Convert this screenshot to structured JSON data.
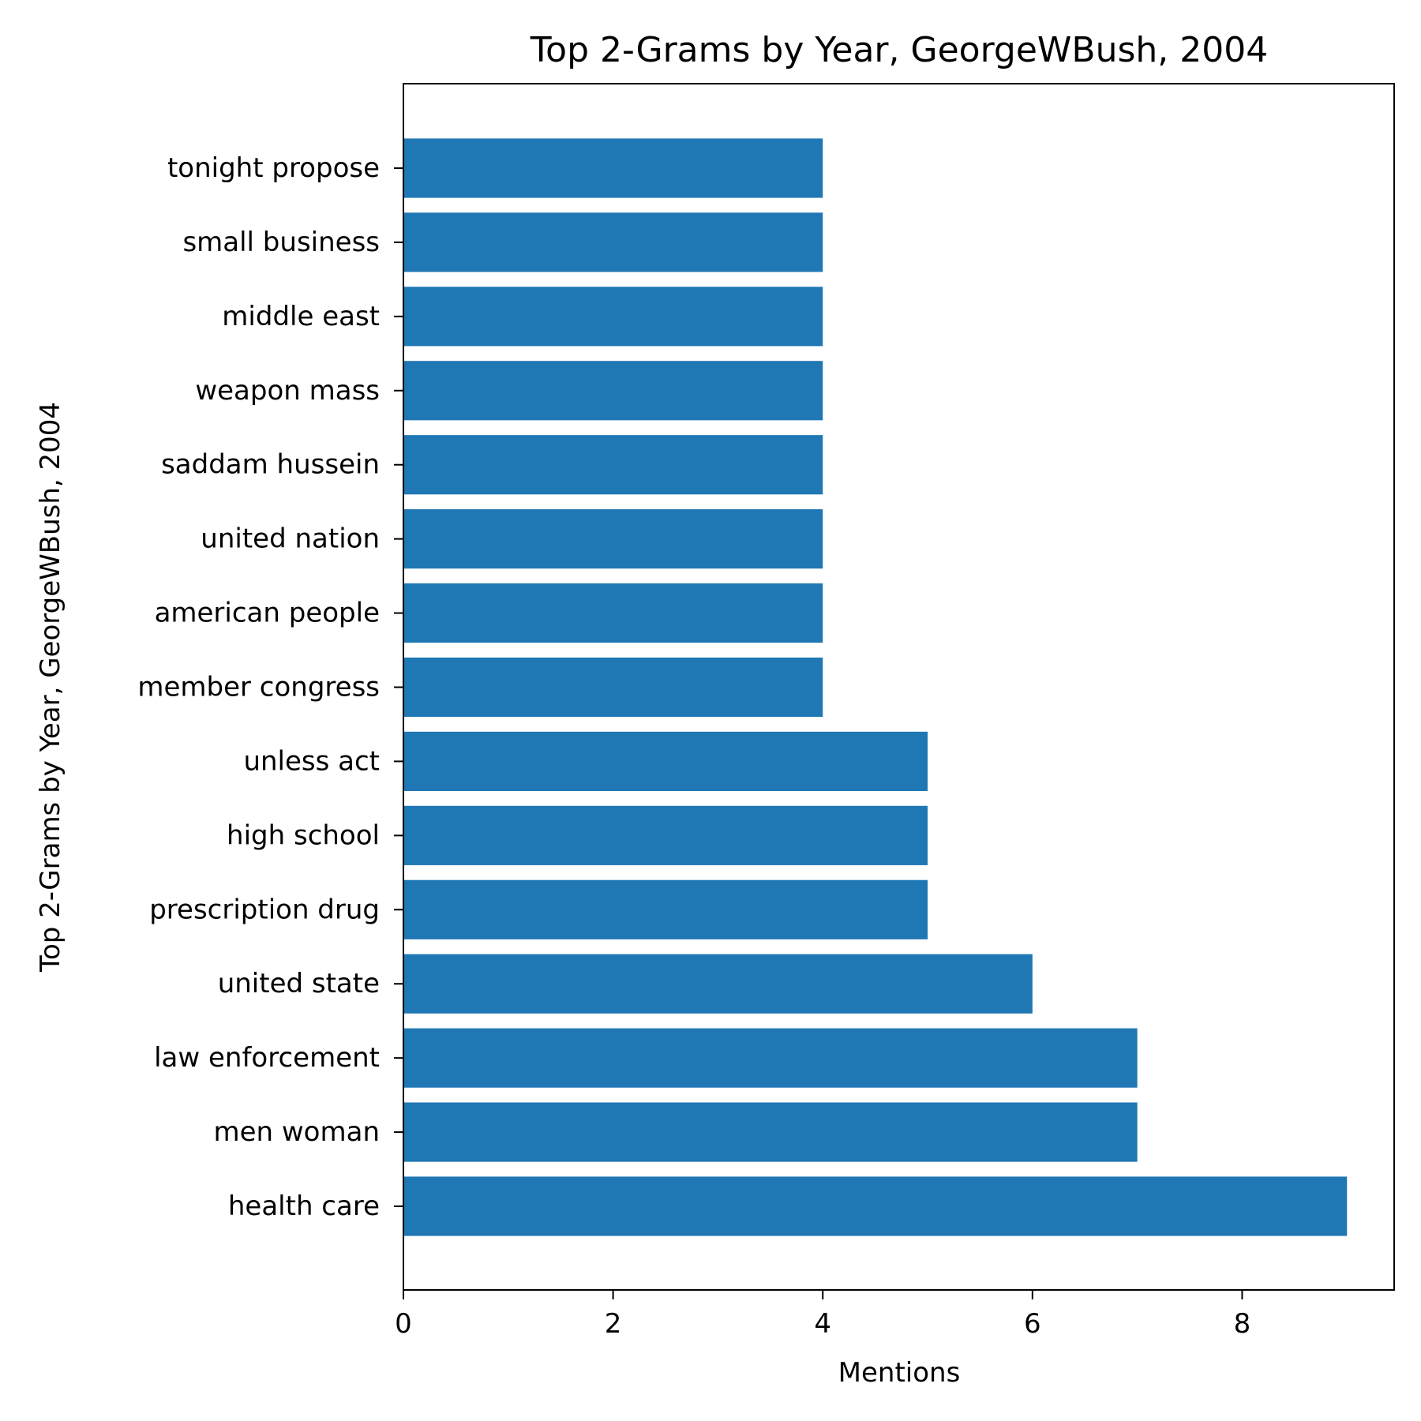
{
  "chart_data": {
    "type": "bar",
    "orientation": "horizontal",
    "title": "Top 2-Grams by Year, GeorgeWBush, 2004",
    "xlabel": "Mentions",
    "ylabel": "Top 2-Grams by Year, GeorgeWBush, 2004",
    "categories": [
      "health care",
      "men woman",
      "law enforcement",
      "united state",
      "prescription drug",
      "high school",
      "unless act",
      "member congress",
      "american people",
      "united nation",
      "saddam hussein",
      "weapon mass",
      "middle east",
      "small business",
      "tonight propose"
    ],
    "values": [
      9,
      7,
      7,
      6,
      5,
      5,
      5,
      4,
      4,
      4,
      4,
      4,
      4,
      4,
      4
    ],
    "xlim": [
      0,
      9.45
    ],
    "xticks": [
      0,
      2,
      4,
      6,
      8
    ],
    "grid": false,
    "legend": "none",
    "bar_color": "#1f77b4"
  }
}
